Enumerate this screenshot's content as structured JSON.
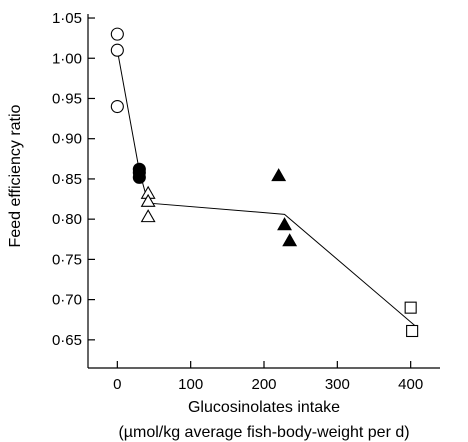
{
  "chart_data": {
    "type": "scatter",
    "ylabel": "Feed efficiency ratio",
    "xlabel_line1": "Glucosinolates intake",
    "xlabel_line2": "(µmol/kg average fish-body-weight per d)",
    "xlim": [
      -40,
      440
    ],
    "ylim": [
      0.615,
      1.055
    ],
    "x_ticks": [
      0,
      100,
      200,
      300,
      400
    ],
    "x_tick_labels": [
      "0",
      "100",
      "200",
      "300",
      "400"
    ],
    "y_ticks": [
      0.65,
      0.7,
      0.75,
      0.8,
      0.85,
      0.9,
      0.95,
      1.0,
      1.05
    ],
    "y_tick_labels": [
      "0·65",
      "0·70",
      "0·75",
      "0·80",
      "0·85",
      "0·90",
      "0·95",
      "1·00",
      "1·05"
    ],
    "grid": false,
    "series": [
      {
        "marker": "circle-open",
        "points": [
          [
            0,
            1.03
          ],
          [
            0,
            1.01
          ],
          [
            0,
            0.94
          ]
        ]
      },
      {
        "marker": "circle-filled",
        "points": [
          [
            30,
            0.862
          ],
          [
            30,
            0.858
          ],
          [
            30,
            0.852
          ]
        ]
      },
      {
        "marker": "triangle-open",
        "points": [
          [
            42,
            0.832
          ],
          [
            42,
            0.822
          ],
          [
            42,
            0.803
          ]
        ]
      },
      {
        "marker": "triangle-filled",
        "points": [
          [
            220,
            0.854
          ],
          [
            228,
            0.793
          ],
          [
            235,
            0.773
          ]
        ]
      },
      {
        "marker": "square-open",
        "points": [
          [
            400,
            0.69
          ],
          [
            402,
            0.661
          ]
        ]
      }
    ],
    "fit_line": [
      [
        0,
        1.01
      ],
      [
        30,
        0.86
      ],
      [
        42,
        0.82
      ],
      [
        228,
        0.806
      ],
      [
        408,
        0.666
      ]
    ]
  }
}
